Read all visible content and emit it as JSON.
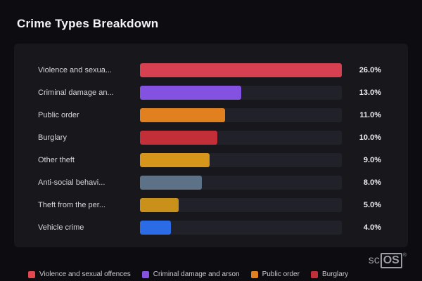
{
  "page": {
    "title": "Crime Types Breakdown"
  },
  "chart_data": {
    "type": "bar",
    "orientation": "horizontal",
    "title": "Crime Types Breakdown",
    "categories": [
      "Violence and sexua...",
      "Criminal damage an...",
      "Public order",
      "Burglary",
      "Other theft",
      "Anti-social behavi...",
      "Theft from the per...",
      "Vehicle crime"
    ],
    "values": [
      26.0,
      13.0,
      11.0,
      10.0,
      9.0,
      8.0,
      5.0,
      4.0
    ],
    "value_labels": [
      "26.0%",
      "13.0%",
      "11.0%",
      "10.0%",
      "9.0%",
      "8.0%",
      "5.0%",
      "4.0%"
    ],
    "colors": [
      "#d64050",
      "#8352e0",
      "#e0801f",
      "#c22f38",
      "#d6961b",
      "#5d7287",
      "#c9911a",
      "#2b6ce6"
    ],
    "max_value": 26.0,
    "xlabel": "",
    "ylabel": "",
    "grid": false,
    "legend_position": "bottom"
  },
  "legend": {
    "items": [
      {
        "label": "Violence and sexual offences",
        "color": "#e0474f"
      },
      {
        "label": "Criminal damage and arson",
        "color": "#8352e0"
      },
      {
        "label": "Public order",
        "color": "#e0801f"
      },
      {
        "label": "Burglary",
        "color": "#c22f38"
      }
    ]
  },
  "watermark": {
    "prefix": "sc",
    "boxed": "OS",
    "reg": "®"
  }
}
